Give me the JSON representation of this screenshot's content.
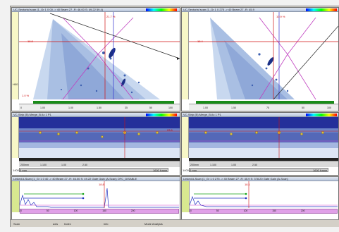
{
  "panels": {
    "top_left": {
      "title": "UC-Sectorial scan (1_Gr 1 0 00 -> 40 Beam 27 -R: 46.00 S: 49.22 59.4)",
      "cursor_label_red": "18.8",
      "cursor_label_side": "21.7 %",
      "bottom_val": "1.0 %",
      "left_label": "H00",
      "ticks": [
        "0",
        "1.00",
        "1.00",
        "1.50",
        "35",
        "50",
        "100"
      ]
    },
    "top_right": {
      "title": "UC-Sectorial scan (1_Gr 1 0 275 -> 40 Beam 27 -R: 45.9",
      "cursor_label_red": "18.4",
      "cursor_label_side": "10.9 %",
      "ticks": [
        "1.00",
        "1.50",
        "75",
        "50",
        "100"
      ]
    },
    "mid_left": {
      "title": "VC-Strip (B) Merge_B Ax 1 P1",
      "ruler": [
        "200mm",
        "1.100",
        "1.00",
        "2.50"
      ],
      "left_label": "1400.0 mm",
      "right_label": "1600 frame",
      "side_label": "93.6"
    },
    "mid_right": {
      "title": "VC-Strip (B) Merge_B Ax 1 P1",
      "ruler": [
        "200mm",
        "1.100",
        "1.00",
        "2.50"
      ],
      "left_label": "1400.0 mm",
      "right_label": "1600 frame"
    },
    "bot_left": {
      "title": "Linked A-Scan (1_Gr 1 0 40 -> 40 Beam 27 -R: 46.00 S: 49.22 Gate Gain (A-Scan) OFC_DISABLE",
      "red_label": "18.8",
      "pink_ticks": [
        "0",
        "50",
        "100",
        "150",
        "200"
      ]
    },
    "bot_right": {
      "title": "Linked A-Scan (1_Gr 1 0 275 -> 40 Beam 27 -R: 45.9 S: 378.20 Gate Gain (A-Scan)",
      "red_label": "18.1",
      "pink_ticks": [
        "0",
        "50",
        "100",
        "150",
        "200"
      ]
    }
  },
  "status_bar": {
    "scan": "Scan",
    "axis": "axis",
    "index": "Index",
    "info": "info",
    "mode": "Mode Analysis"
  },
  "colors": {
    "accent": "#e0a0e8",
    "cursor_red": "#d01010",
    "cursor_blue": "#3030d0",
    "gate_green": "#10a010"
  }
}
